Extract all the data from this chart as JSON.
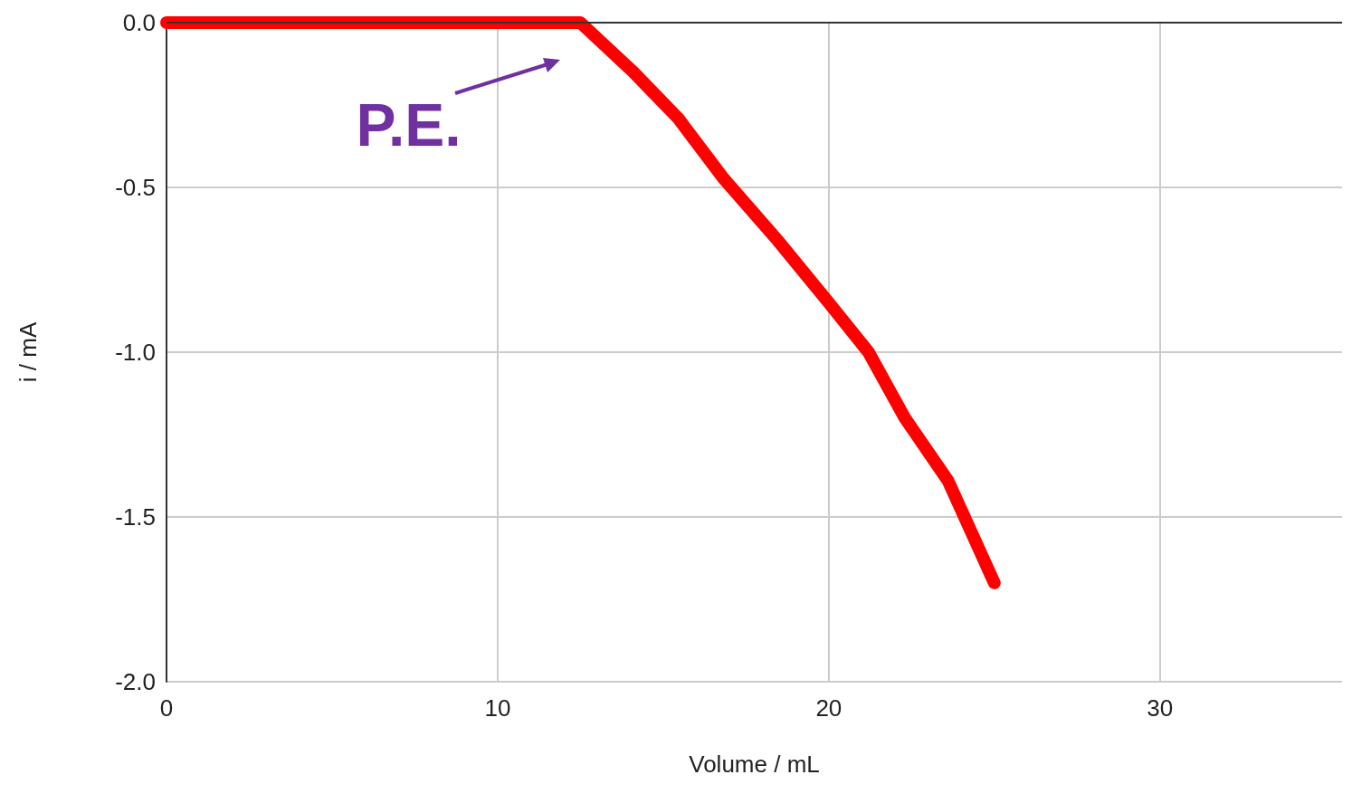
{
  "chart_data": {
    "type": "line",
    "xlabel": "Volume / mL",
    "ylabel": "i / mA",
    "x": [
      0,
      12.5,
      14.1,
      15.45,
      16.8,
      18.45,
      20,
      21.2,
      22.3,
      23.6,
      25
    ],
    "series": [
      {
        "color": "#ff0000",
        "values": [
          0,
          0,
          -0.15,
          -0.29,
          -0.47,
          -0.66,
          -0.85,
          -1.0,
          -1.2,
          -1.39,
          -1.7
        ]
      }
    ],
    "xlim": [
      0,
      35.5
    ],
    "xticks": [
      0,
      10,
      20,
      30
    ],
    "ylim": [
      -2,
      0
    ],
    "yticks": [
      {
        "value": -2,
        "label": "-2.0"
      },
      {
        "value": -1.5,
        "label": "-1.5"
      },
      {
        "value": -1,
        "label": "-1.0"
      },
      {
        "value": -0.5,
        "label": "-0.5"
      },
      {
        "value": 0,
        "label": "0.0"
      }
    ],
    "grid": true,
    "line_style": "solid",
    "annotations": [
      {
        "text": "P.E.",
        "x": 12.5,
        "y": 0
      }
    ]
  }
}
